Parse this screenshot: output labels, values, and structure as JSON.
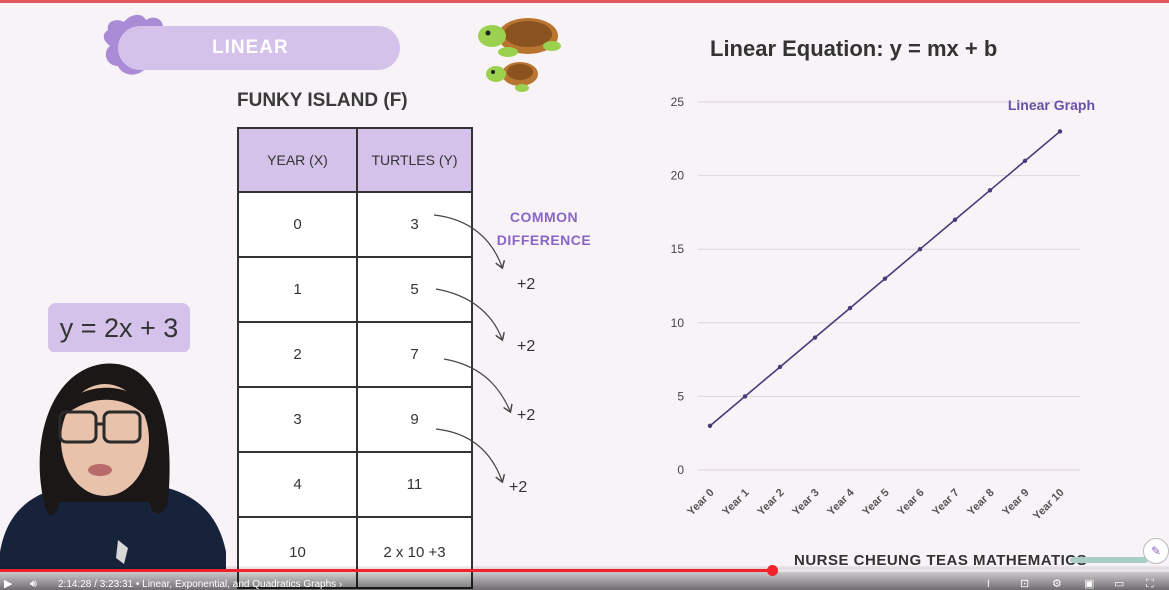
{
  "slide": {
    "badge_label": "LINEAR",
    "table_title": "FUNKY ISLAND (F)",
    "table": {
      "headers": [
        "YEAR (X)",
        "TURTLES (Y)"
      ],
      "rows": [
        [
          "0",
          "3"
        ],
        [
          "1",
          "5"
        ],
        [
          "2",
          "7"
        ],
        [
          "3",
          "9"
        ],
        [
          "4",
          "11"
        ],
        [
          "10",
          "2 x 10 +3"
        ]
      ]
    },
    "common_difference_line1": "COMMON",
    "common_difference_line2": "DIFFERENCE",
    "differences": [
      "+2",
      "+2",
      "+2",
      "+2"
    ],
    "equation": "y = 2x + 3",
    "brand": "NURSE CHEUNG TEAS MATHEMATICS",
    "colors": {
      "accent_purple": "#d4c2ea",
      "label_purple": "#8a65c4",
      "line": "#4a3a7a"
    }
  },
  "chart_data": {
    "type": "line",
    "title": "Linear Equation: y = mx + b",
    "categories": [
      "Year 0",
      "Year 1",
      "Year 2",
      "Year 3",
      "Year 4",
      "Year 5",
      "Year 6",
      "Year 7",
      "Year 8",
      "Year 9",
      "Year 10"
    ],
    "series": [
      {
        "name": "Linear Graph",
        "values": [
          3,
          5,
          7,
          9,
          11,
          13,
          15,
          17,
          19,
          21,
          23
        ]
      }
    ],
    "ylim": [
      0,
      25
    ],
    "yticks": [
      0,
      5,
      10,
      15,
      20,
      25
    ],
    "grid": true,
    "legend": "top-right"
  },
  "player": {
    "time": "2:14:28 / 3:23:31",
    "chapter": "Linear, Exponential, and Quadratics Graphs",
    "progress_fraction": 0.66,
    "icons": [
      "play-icon",
      "volume-icon",
      "subtitles-icon",
      "settings-icon",
      "miniplayer-icon",
      "theater-icon",
      "fullscreen-icon"
    ]
  }
}
